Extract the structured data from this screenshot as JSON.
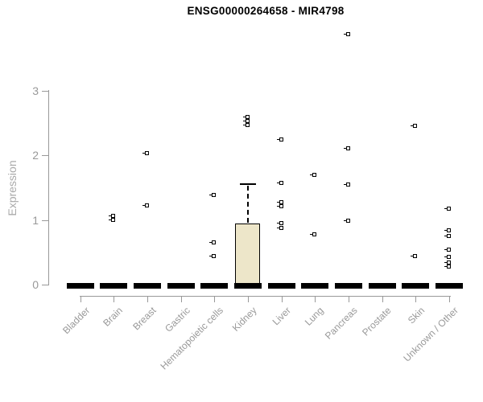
{
  "chart_data": {
    "type": "boxplot",
    "title": "ENSG00000264658 - MIR4798",
    "xlabel": "",
    "ylabel": "Expression",
    "ylim": [
      0,
      3
    ],
    "yticks": [
      0,
      1,
      2,
      3
    ],
    "grid": false,
    "legend": false,
    "categories": [
      "Bladder",
      "Brain",
      "Breast",
      "Gastric",
      "Hematopoietic cells",
      "Kidney",
      "Liver",
      "Lung",
      "Pancreas",
      "Prostate",
      "Skin",
      "Unknown / Other"
    ],
    "boxes": [
      {
        "category": "Bladder",
        "q1": 0,
        "median": 0,
        "q3": 0,
        "whisker_low": 0,
        "whisker_high": 0,
        "points": []
      },
      {
        "category": "Brain",
        "q1": 0,
        "median": 0,
        "q3": 0,
        "whisker_low": 0,
        "whisker_high": 0,
        "points": [
          1.06,
          1.0
        ]
      },
      {
        "category": "Breast",
        "q1": 0,
        "median": 0,
        "q3": 0,
        "whisker_low": 0,
        "whisker_high": 0,
        "points": [
          2.02,
          1.22
        ]
      },
      {
        "category": "Gastric",
        "q1": 0,
        "median": 0,
        "q3": 0,
        "whisker_low": 0,
        "whisker_high": 0,
        "points": []
      },
      {
        "category": "Hematopoietic cells",
        "q1": 0,
        "median": 0,
        "q3": 0,
        "whisker_low": 0,
        "whisker_high": 0,
        "points": [
          1.38,
          0.64,
          0.43
        ]
      },
      {
        "category": "Kidney",
        "q1": 0,
        "median": 0,
        "q3": 0.95,
        "whisker_low": 0,
        "whisker_high": 1.55,
        "points": [
          2.59,
          2.52,
          2.46
        ]
      },
      {
        "category": "Liver",
        "q1": 0,
        "median": 0,
        "q3": 0,
        "whisker_low": 0,
        "whisker_high": 0,
        "points": [
          2.24,
          1.57,
          1.27,
          1.21,
          0.95,
          0.87
        ]
      },
      {
        "category": "Lung",
        "q1": 0,
        "median": 0,
        "q3": 0,
        "whisker_low": 0,
        "whisker_high": 0,
        "points": [
          1.69,
          0.77
        ]
      },
      {
        "category": "Pancreas",
        "q1": 0,
        "median": 0,
        "q3": 0,
        "whisker_low": 0,
        "whisker_high": 0,
        "points": [
          3.86,
          2.1,
          1.54,
          0.98
        ]
      },
      {
        "category": "Prostate",
        "q1": 0,
        "median": 0,
        "q3": 0,
        "whisker_low": 0,
        "whisker_high": 0,
        "points": []
      },
      {
        "category": "Skin",
        "q1": 0,
        "median": 0,
        "q3": 0,
        "whisker_low": 0,
        "whisker_high": 0,
        "points": [
          2.45,
          0.43
        ]
      },
      {
        "category": "Unknown / Other",
        "q1": 0,
        "median": 0,
        "q3": 0,
        "whisker_low": 0,
        "whisker_high": 0,
        "points": [
          1.17,
          0.83,
          0.75,
          0.53,
          0.42,
          0.33,
          0.27
        ]
      }
    ],
    "colors": {
      "box_fill": "#EDE6C9",
      "box_border": "#000000",
      "point": "#000000",
      "axis": "#999999",
      "tick_label": "#999999",
      "axis_title": "#AAAAAA",
      "title": "#000000",
      "background": "#FFFFFF"
    }
  }
}
